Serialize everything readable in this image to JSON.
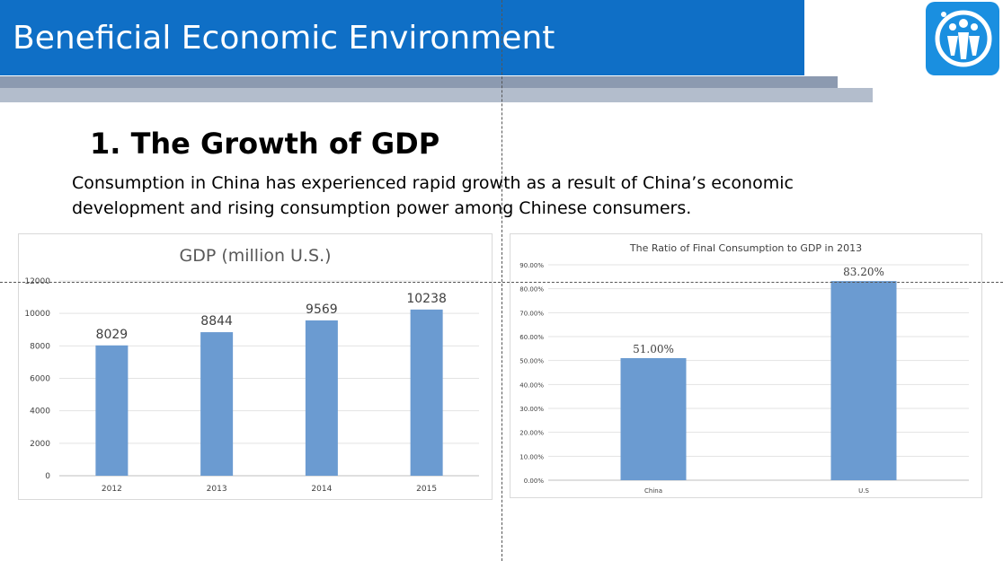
{
  "header": {
    "title": "Beneficial Economic Environment"
  },
  "logo": {
    "icon": "people-logo-icon",
    "color": "#1a8fe0"
  },
  "section": {
    "heading": "1. The Growth of GDP",
    "intro": "Consumption in China has experienced rapid growth as a result of China’s economic development and rising consumption power among Chinese consumers."
  },
  "colors": {
    "header": "#0f6fc6",
    "bar": "#6b9bd1"
  },
  "chart_data": [
    {
      "type": "bar",
      "title": "GDP (million U.S.)",
      "categories": [
        "2012",
        "2013",
        "2014",
        "2015"
      ],
      "values": [
        8029,
        8844,
        9569,
        10238
      ],
      "value_labels": [
        "8029",
        "8844",
        "9569",
        "10238"
      ],
      "ylim": [
        0,
        12000
      ],
      "yticks": [
        0,
        2000,
        4000,
        6000,
        8000,
        10000,
        12000
      ],
      "ytick_labels": [
        "0",
        "2000",
        "4000",
        "6000",
        "8000",
        "10000",
        "12000"
      ],
      "grid": true,
      "legend": "none"
    },
    {
      "type": "bar",
      "title": "The Ratio of Final Consumption to  GDP in 2013",
      "categories": [
        "China",
        "U.S"
      ],
      "values": [
        51.0,
        83.2
      ],
      "value_labels": [
        "51.00%",
        "83.20%"
      ],
      "ylim": [
        0,
        90
      ],
      "yticks": [
        0,
        10,
        20,
        30,
        40,
        50,
        60,
        70,
        80,
        90
      ],
      "ytick_labels": [
        "0.00%",
        "10.00%",
        "20.00%",
        "30.00%",
        "40.00%",
        "50.00%",
        "60.00%",
        "70.00%",
        "80.00%",
        "90.00%"
      ],
      "grid": true,
      "legend": "none"
    }
  ]
}
